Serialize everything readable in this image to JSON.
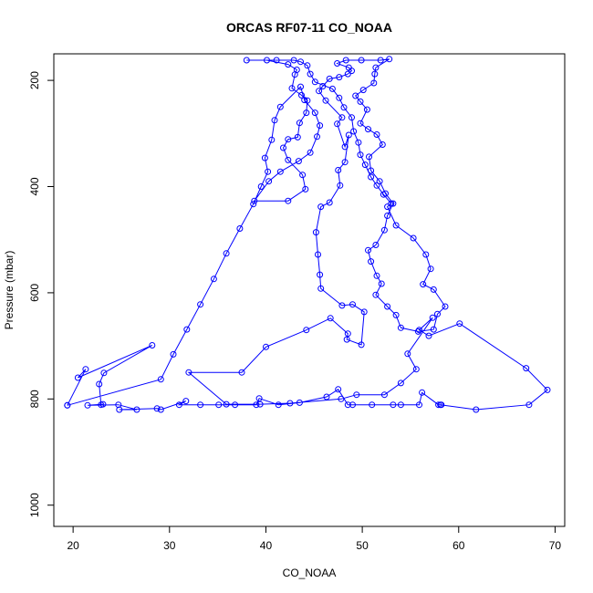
{
  "chart_data": {
    "type": "line",
    "title": "ORCAS RF07-11 CO_NOAA",
    "xlabel": "CO_NOAA",
    "ylabel": "Pressure (mbar)",
    "xlim": [
      18.0,
      71.0
    ],
    "ylim": [
      1040,
      150
    ],
    "y_reversed": true,
    "grid": false,
    "legend": "none",
    "marker": "open-circle",
    "x_ticks": [
      20,
      30,
      40,
      50,
      60,
      70
    ],
    "y_ticks": [
      200,
      400,
      600,
      800,
      1000
    ],
    "series": [
      {
        "color": "#0000ff",
        "points": [
          [
            19.4,
            812
          ],
          [
            21.3,
            744
          ],
          [
            20.5,
            760
          ],
          [
            28.2,
            699
          ],
          [
            23.2,
            751
          ],
          [
            22.7,
            772
          ],
          [
            22.9,
            811
          ],
          [
            23.1,
            810
          ],
          [
            21.5,
            812
          ],
          [
            24.7,
            811
          ],
          [
            26.6,
            820
          ],
          [
            24.8,
            820
          ],
          [
            28.7,
            818
          ],
          [
            29.1,
            820
          ],
          [
            31.7,
            804
          ],
          [
            31.0,
            811
          ],
          [
            33.2,
            811
          ],
          [
            35.1,
            811
          ],
          [
            36.8,
            811
          ],
          [
            39.0,
            811
          ],
          [
            39.3,
            799
          ],
          [
            41.3,
            811
          ],
          [
            43.5,
            807
          ],
          [
            46.3,
            796
          ],
          [
            47.5,
            782
          ],
          [
            48.5,
            811
          ],
          [
            49.0,
            811
          ],
          [
            51.0,
            811
          ],
          [
            53.2,
            811
          ],
          [
            54.0,
            811
          ],
          [
            55.9,
            811
          ],
          [
            56.2,
            788
          ],
          [
            57.9,
            811
          ],
          [
            58.2,
            811
          ],
          [
            58.1,
            811
          ],
          [
            61.8,
            820
          ],
          [
            67.3,
            811
          ],
          [
            69.2,
            783
          ],
          [
            67.0,
            742
          ],
          [
            60.1,
            658
          ],
          [
            56.9,
            681
          ],
          [
            55.9,
            670
          ],
          [
            57.3,
            647
          ],
          [
            54.7,
            715
          ],
          [
            55.6,
            744
          ],
          [
            54.0,
            770
          ],
          [
            52.3,
            792
          ],
          [
            49.4,
            792
          ],
          [
            47.8,
            800
          ],
          [
            42.5,
            808
          ],
          [
            39.4,
            810
          ],
          [
            35.9,
            810
          ],
          [
            32.0,
            750
          ],
          [
            37.5,
            750
          ],
          [
            40.0,
            702
          ],
          [
            44.2,
            670
          ],
          [
            46.7,
            648
          ],
          [
            48.5,
            677
          ],
          [
            48.4,
            688
          ],
          [
            49.9,
            698
          ],
          [
            50.2,
            636
          ],
          [
            49.0,
            622
          ],
          [
            47.9,
            624
          ],
          [
            45.7,
            592
          ],
          [
            45.6,
            566
          ],
          [
            45.4,
            528
          ],
          [
            45.2,
            486
          ],
          [
            45.7,
            438
          ],
          [
            46.6,
            430
          ],
          [
            47.7,
            398
          ],
          [
            47.5,
            369
          ],
          [
            48.2,
            354
          ],
          [
            48.6,
            303
          ],
          [
            48.2,
            325
          ],
          [
            47.4,
            282
          ],
          [
            47.9,
            270
          ],
          [
            46.2,
            238
          ],
          [
            45.5,
            220
          ],
          [
            45.9,
            211
          ],
          [
            46.6,
            197
          ],
          [
            47.6,
            194
          ],
          [
            48.5,
            188
          ],
          [
            48.9,
            182
          ],
          [
            48.6,
            176
          ],
          [
            47.4,
            168
          ],
          [
            48.3,
            162
          ],
          [
            49.9,
            162
          ],
          [
            51.9,
            162
          ],
          [
            52.8,
            160
          ],
          [
            51.4,
            176
          ],
          [
            51.3,
            188
          ],
          [
            51.2,
            205
          ],
          [
            50.1,
            218
          ],
          [
            49.3,
            229
          ],
          [
            49.8,
            240
          ],
          [
            50.5,
            255
          ],
          [
            49.8,
            281
          ],
          [
            50.6,
            292
          ],
          [
            51.5,
            302
          ],
          [
            52.1,
            321
          ],
          [
            50.7,
            344
          ],
          [
            50.9,
            370
          ],
          [
            51.8,
            390
          ],
          [
            52.4,
            413
          ],
          [
            53.2,
            432
          ],
          [
            52.6,
            455
          ],
          [
            52.3,
            482
          ],
          [
            51.4,
            510
          ],
          [
            50.6,
            520
          ],
          [
            50.9,
            541
          ],
          [
            51.5,
            568
          ],
          [
            52.0,
            583
          ],
          [
            51.4,
            604
          ],
          [
            52.6,
            626
          ],
          [
            53.5,
            642
          ],
          [
            54.0,
            666
          ],
          [
            55.8,
            673
          ],
          [
            57.4,
            669
          ],
          [
            57.8,
            640
          ],
          [
            58.6,
            626
          ],
          [
            57.4,
            594
          ],
          [
            56.3,
            584
          ],
          [
            57.1,
            555
          ],
          [
            56.6,
            528
          ],
          [
            55.3,
            497
          ],
          [
            53.5,
            473
          ],
          [
            52.6,
            438
          ],
          [
            53.0,
            432
          ],
          [
            52.2,
            415
          ],
          [
            51.5,
            398
          ],
          [
            50.9,
            382
          ],
          [
            50.3,
            359
          ],
          [
            49.8,
            340
          ],
          [
            49.6,
            317
          ],
          [
            49.1,
            296
          ],
          [
            48.9,
            270
          ],
          [
            48.1,
            251
          ],
          [
            47.6,
            233
          ],
          [
            46.9,
            216
          ],
          [
            45.1,
            203
          ],
          [
            44.6,
            188
          ],
          [
            44.3,
            172
          ],
          [
            43.6,
            165
          ],
          [
            42.9,
            162
          ],
          [
            41.1,
            162
          ],
          [
            38.0,
            162
          ],
          [
            40.1,
            162
          ],
          [
            42.3,
            170
          ],
          [
            43.2,
            180
          ],
          [
            43.0,
            189
          ],
          [
            42.7,
            215
          ],
          [
            43.7,
            228
          ],
          [
            44.3,
            238
          ],
          [
            44.2,
            261
          ],
          [
            43.5,
            280
          ],
          [
            43.3,
            307
          ],
          [
            42.3,
            311
          ],
          [
            41.8,
            327
          ],
          [
            42.3,
            350
          ],
          [
            43.8,
            378
          ],
          [
            44.1,
            405
          ],
          [
            42.3,
            427
          ],
          [
            38.8,
            427
          ],
          [
            40.3,
            390
          ],
          [
            41.5,
            372
          ],
          [
            43.4,
            352
          ],
          [
            44.6,
            336
          ],
          [
            45.3,
            306
          ],
          [
            45.6,
            285
          ],
          [
            45.1,
            261
          ],
          [
            44.0,
            237
          ],
          [
            43.6,
            212
          ],
          [
            41.5,
            250
          ],
          [
            40.9,
            275
          ],
          [
            40.6,
            312
          ],
          [
            39.9,
            346
          ],
          [
            40.2,
            372
          ],
          [
            39.5,
            400
          ],
          [
            38.7,
            433
          ],
          [
            37.3,
            479
          ],
          [
            35.9,
            526
          ],
          [
            34.6,
            574
          ],
          [
            33.2,
            622
          ],
          [
            31.8,
            669
          ],
          [
            30.4,
            716
          ],
          [
            29.1,
            763
          ],
          [
            19.4,
            812
          ]
        ]
      }
    ]
  }
}
